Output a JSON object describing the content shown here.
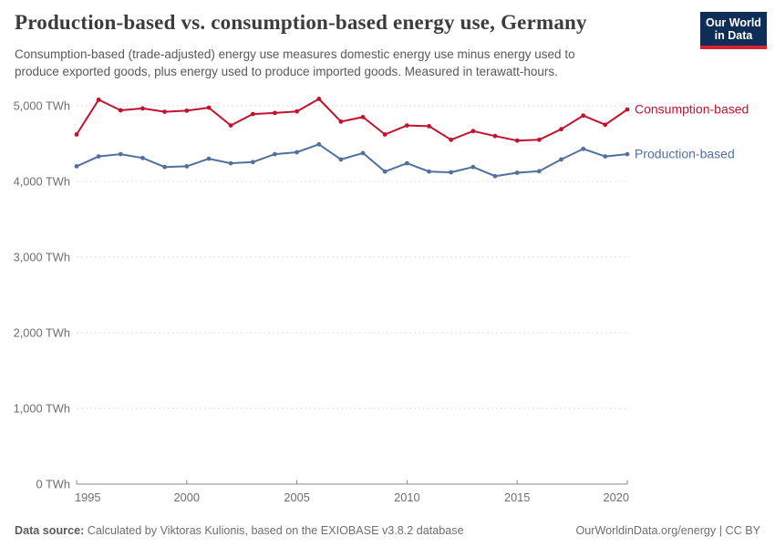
{
  "header": {
    "title": "Production-based vs. consumption-based energy use, Germany",
    "subtitle_line1": "Consumption-based (trade-adjusted) energy use measures domestic energy use minus energy used to",
    "subtitle_line2": "produce exported goods, plus energy used to produce imported goods. Measured in terawatt-hours.",
    "logo": {
      "line1": "Our World",
      "line2": "in Data",
      "bg_color": "#0f2e57",
      "accent_color": "#d9232e"
    }
  },
  "chart_data": {
    "type": "line",
    "unit": "TWh",
    "grid": "horizontal-dashed",
    "legend_position": "end-of-line-labels",
    "x": [
      1995,
      1996,
      1997,
      1998,
      1999,
      2000,
      2001,
      2002,
      2003,
      2004,
      2005,
      2006,
      2007,
      2008,
      2009,
      2010,
      2011,
      2012,
      2013,
      2014,
      2015,
      2016,
      2017,
      2018,
      2019,
      2020
    ],
    "series": [
      {
        "name": "Consumption-based",
        "color": "#c2122d",
        "values": [
          4620,
          5080,
          4940,
          4965,
          4920,
          4935,
          4975,
          4740,
          4890,
          4905,
          4925,
          5090,
          4790,
          4850,
          4620,
          4740,
          4730,
          4550,
          4665,
          4600,
          4540,
          4550,
          4690,
          4870,
          4750,
          4950
        ]
      },
      {
        "name": "Production-based",
        "color": "#51709f",
        "values": [
          4200,
          4330,
          4360,
          4310,
          4190,
          4200,
          4300,
          4240,
          4255,
          4360,
          4385,
          4490,
          4290,
          4375,
          4130,
          4240,
          4130,
          4120,
          4190,
          4070,
          4115,
          4135,
          4290,
          4430,
          4330,
          4360
        ]
      }
    ],
    "ylim": [
      0,
      5000
    ],
    "xlim": [
      1995,
      2020
    ],
    "yticks": [
      {
        "value": 0,
        "label": "0 TWh"
      },
      {
        "value": 1000,
        "label": "1,000 TWh"
      },
      {
        "value": 2000,
        "label": "2,000 TWh"
      },
      {
        "value": 3000,
        "label": "3,000 TWh"
      },
      {
        "value": 4000,
        "label": "4,000 TWh"
      },
      {
        "value": 5000,
        "label": "5,000 TWh"
      }
    ],
    "xticks": [
      {
        "value": 1995,
        "label": "1995"
      },
      {
        "value": 2000,
        "label": "2000"
      },
      {
        "value": 2005,
        "label": "2005"
      },
      {
        "value": 2010,
        "label": "2010"
      },
      {
        "value": 2015,
        "label": "2015"
      },
      {
        "value": 2020,
        "label": "2020"
      }
    ]
  },
  "footer": {
    "datasource_label": "Data source:",
    "datasource_text": " Calculated by Viktoras Kulionis, based on the EXIOBASE v3.8.2 database",
    "link": "OurWorldinData.org/energy | CC BY"
  }
}
